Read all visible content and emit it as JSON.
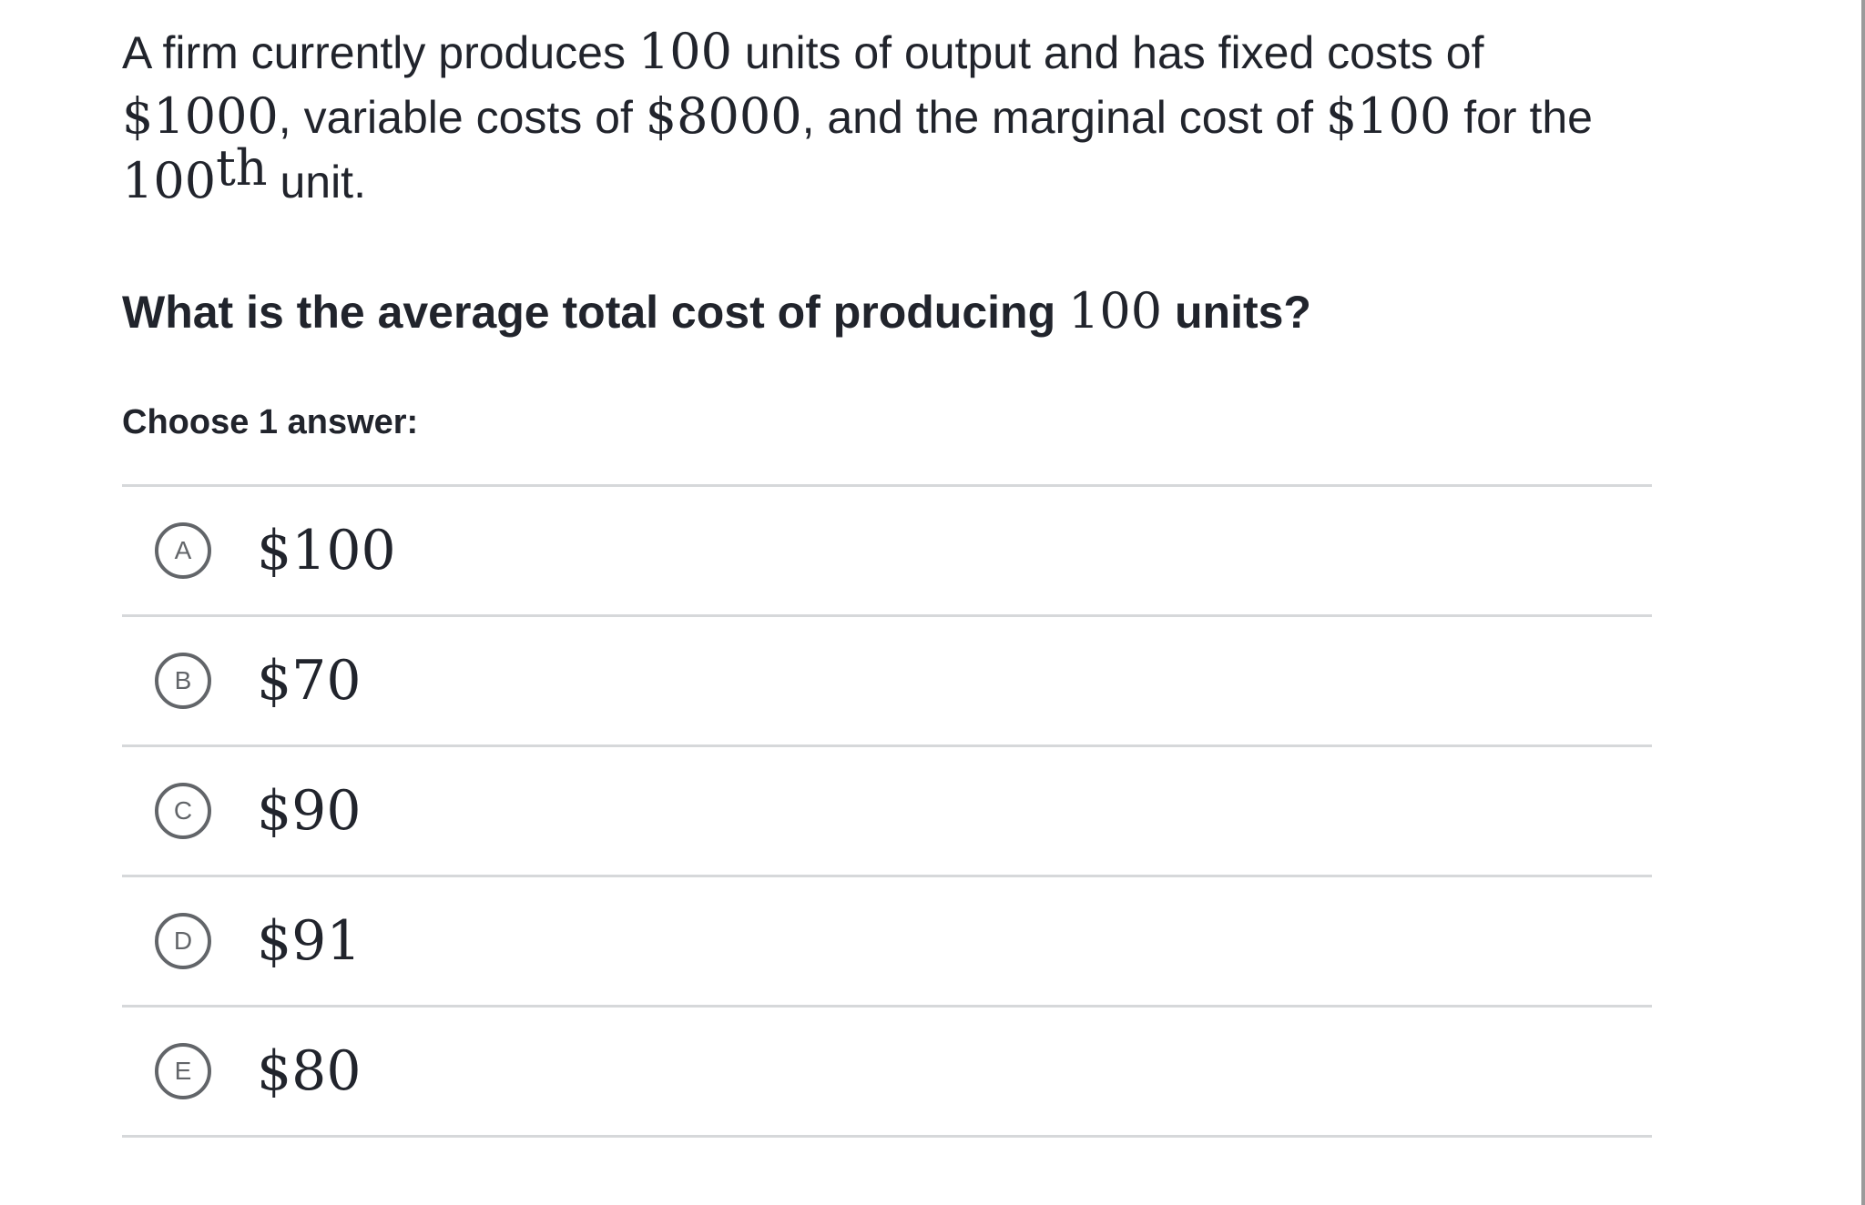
{
  "problem": {
    "p1": "A firm currently produces ",
    "m1": "100",
    "p2": " units of output and has fixed costs of ",
    "m2": "$1000",
    "p3": ", variable costs of ",
    "m3": "$8000",
    "p4": ", and the marginal cost of ",
    "m4": "$100",
    "p5": " for the ",
    "m5": "100",
    "m5_sup": "th",
    "p6": " unit."
  },
  "question": {
    "q1": "What is the average total cost of producing ",
    "m1": "100",
    "q2": " units?"
  },
  "prompt": "Choose 1 answer:",
  "choices": [
    {
      "letter": "A",
      "value": "$100"
    },
    {
      "letter": "B",
      "value": "$70"
    },
    {
      "letter": "C",
      "value": "$90"
    },
    {
      "letter": "D",
      "value": "$91"
    },
    {
      "letter": "E",
      "value": "$80"
    }
  ]
}
